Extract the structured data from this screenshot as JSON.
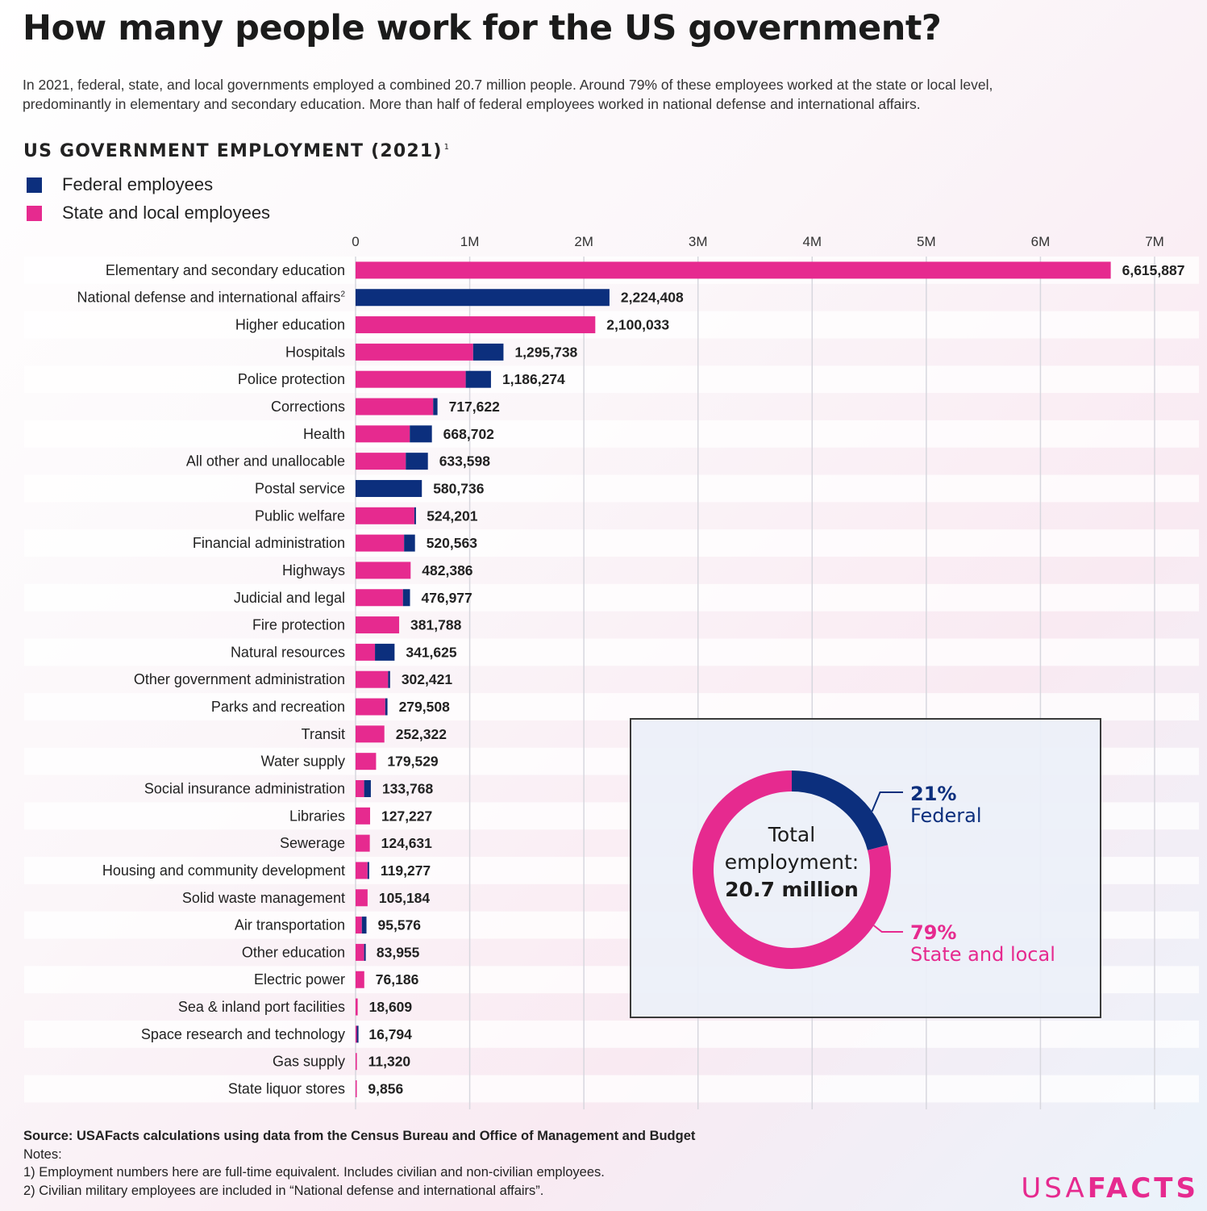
{
  "title": "How many people work for the US government?",
  "subtitle": [
    "In 2021, federal, state, and local governments employed a combined 20.7 million people. Around 79% of these employees worked at the state or local level,",
    "predominantly in elementary and secondary education. More than half of federal employees worked in national defense and international affairs."
  ],
  "colors": {
    "federal": "#0c2f7d",
    "state_local": "#e62a8f",
    "band": "#ffffff"
  },
  "chart_data": {
    "type": "bar",
    "orientation": "horizontal",
    "stacked": true,
    "title": "US GOVERNMENT EMPLOYMENT (2021)",
    "title_footnote": "1",
    "legend": [
      "Federal employees",
      "State and local employees"
    ],
    "legend_position": "top-left",
    "x_ticks": [
      "0",
      "1M",
      "2M",
      "3M",
      "4M",
      "5M",
      "6M",
      "7M"
    ],
    "xlim": [
      0,
      7000000
    ],
    "grid": true,
    "categories": [
      "Elementary and secondary education",
      "National defense and international affairs",
      "Higher education",
      "Hospitals",
      "Police protection",
      "Corrections",
      "Health",
      "All other and unallocable",
      "Postal service",
      "Public welfare",
      "Financial administration",
      "Highways",
      "Judicial and legal",
      "Fire protection",
      "Natural resources",
      "Other government administration",
      "Parks and recreation",
      "Transit",
      "Water supply",
      "Social insurance administration",
      "Libraries",
      "Sewerage",
      "Housing and community development",
      "Solid waste management",
      "Air transportation",
      "Other education",
      "Electric power",
      "Sea & inland port facilities",
      "Space research and technology",
      "Gas supply",
      "State liquor stores"
    ],
    "category_footnotes": {
      "National defense and international affairs": "2"
    },
    "totals": [
      6615887,
      2224408,
      2100033,
      1295738,
      1186274,
      717622,
      668702,
      633598,
      580736,
      524201,
      520563,
      482386,
      476977,
      381788,
      341625,
      302421,
      279508,
      252322,
      179529,
      133768,
      127227,
      124631,
      119277,
      105184,
      95576,
      83955,
      76186,
      18609,
      16794,
      11320,
      9856
    ],
    "total_labels": [
      "6,615,887",
      "2,224,408",
      "2,100,033",
      "1,295,738",
      "1,186,274",
      "717,622",
      "668,702",
      "633,598",
      "580,736",
      "524,201",
      "520,563",
      "482,386",
      "476,977",
      "381,788",
      "341,625",
      "302,421",
      "279,508",
      "252,322",
      "179,529",
      "133,768",
      "127,227",
      "124,631",
      "119,277",
      "105,184",
      "95,576",
      "83,955",
      "76,186",
      "18,609",
      "16,794",
      "11,320",
      "9,856"
    ],
    "series": [
      {
        "name": "State and local employees",
        "values": [
          6615887,
          0,
          2100033,
          1030000,
          965000,
          680000,
          475000,
          440000,
          0,
          515000,
          425000,
          482386,
          415000,
          381788,
          170000,
          285000,
          260000,
          252322,
          179529,
          75000,
          127227,
          124631,
          105000,
          105184,
          55000,
          75000,
          76186,
          18609,
          2000,
          11320,
          9856
        ]
      },
      {
        "name": "Federal employees",
        "values": [
          0,
          2224408,
          0,
          265738,
          221274,
          37622,
          193702,
          193598,
          580736,
          9201,
          95563,
          0,
          61977,
          0,
          171625,
          17421,
          19508,
          0,
          0,
          58768,
          0,
          0,
          14277,
          0,
          40576,
          8955,
          0,
          0,
          14794,
          0,
          0
        ]
      }
    ]
  },
  "donut": {
    "center_lines": [
      "Total",
      "employment:",
      "20.7 million"
    ],
    "segments": [
      {
        "pct": "21%",
        "label": "Federal",
        "value": 21
      },
      {
        "pct": "79%",
        "label": "State and local",
        "value": 79
      }
    ]
  },
  "footer": {
    "source": "Source: USAFacts calculations using data from the Census Bureau and Office of Management and Budget",
    "notes_heading": "Notes:",
    "notes": [
      "1) Employment numbers here are full-time equivalent. Includes civilian and non-civilian employees.",
      "2) Civilian military employees are included in “National defense and international affairs”."
    ]
  },
  "logo": {
    "light": "USA",
    "bold": "FACTS"
  }
}
